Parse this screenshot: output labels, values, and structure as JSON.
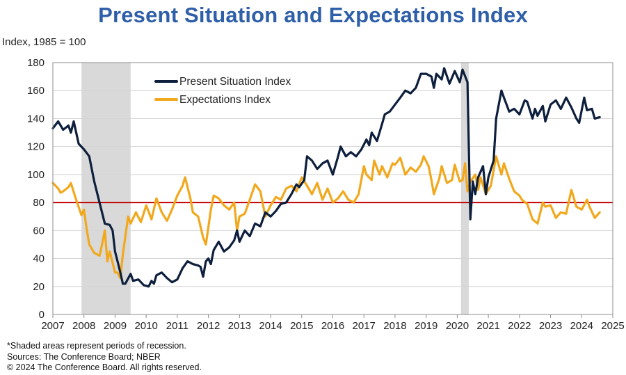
{
  "chart_data": {
    "type": "line",
    "title": "Present Situation and Expectations Index",
    "ylabel": "Index, 1985 = 100",
    "ylim": [
      0,
      180
    ],
    "yticks": [
      0,
      20,
      40,
      60,
      80,
      100,
      120,
      140,
      160,
      180
    ],
    "xlim": [
      2007,
      2025
    ],
    "xticks": [
      2007,
      2008,
      2009,
      2010,
      2011,
      2012,
      2013,
      2014,
      2015,
      2016,
      2017,
      2018,
      2019,
      2020,
      2021,
      2022,
      2023,
      2024,
      2025
    ],
    "grid": true,
    "legend": "top-left inside plot",
    "reference_line": {
      "y": 80,
      "color": "#C00000"
    },
    "recessions": [
      {
        "start": 2007.92,
        "end": 2009.5
      },
      {
        "start": 2020.12,
        "end": 2020.37
      }
    ],
    "series": [
      {
        "name": "Present Situation Index",
        "color": "#0D1F3C",
        "points": [
          [
            2007.0,
            133
          ],
          [
            2007.17,
            138
          ],
          [
            2007.33,
            132
          ],
          [
            2007.5,
            135
          ],
          [
            2007.58,
            130
          ],
          [
            2007.67,
            138
          ],
          [
            2007.83,
            122
          ],
          [
            2008.0,
            118
          ],
          [
            2008.17,
            113
          ],
          [
            2008.33,
            95
          ],
          [
            2008.5,
            80
          ],
          [
            2008.67,
            65
          ],
          [
            2008.83,
            64
          ],
          [
            2008.92,
            60
          ],
          [
            2009.0,
            45
          ],
          [
            2009.08,
            38
          ],
          [
            2009.17,
            30
          ],
          [
            2009.25,
            22
          ],
          [
            2009.33,
            22
          ],
          [
            2009.5,
            29
          ],
          [
            2009.58,
            24
          ],
          [
            2009.75,
            25
          ],
          [
            2009.92,
            21
          ],
          [
            2010.08,
            20
          ],
          [
            2010.17,
            24
          ],
          [
            2010.25,
            22
          ],
          [
            2010.33,
            28
          ],
          [
            2010.5,
            30
          ],
          [
            2010.67,
            26
          ],
          [
            2010.83,
            23
          ],
          [
            2011.0,
            25
          ],
          [
            2011.17,
            33
          ],
          [
            2011.33,
            38
          ],
          [
            2011.5,
            36
          ],
          [
            2011.67,
            35
          ],
          [
            2011.75,
            34
          ],
          [
            2011.83,
            27
          ],
          [
            2011.92,
            38
          ],
          [
            2012.0,
            40
          ],
          [
            2012.08,
            36
          ],
          [
            2012.17,
            46
          ],
          [
            2012.33,
            52
          ],
          [
            2012.5,
            45
          ],
          [
            2012.67,
            48
          ],
          [
            2012.83,
            53
          ],
          [
            2012.92,
            60
          ],
          [
            2013.0,
            52
          ],
          [
            2013.17,
            60
          ],
          [
            2013.33,
            56
          ],
          [
            2013.5,
            65
          ],
          [
            2013.67,
            63
          ],
          [
            2013.83,
            73
          ],
          [
            2014.0,
            70
          ],
          [
            2014.17,
            74
          ],
          [
            2014.33,
            79
          ],
          [
            2014.5,
            80
          ],
          [
            2014.67,
            86
          ],
          [
            2014.83,
            93
          ],
          [
            2014.92,
            91
          ],
          [
            2015.08,
            96
          ],
          [
            2015.17,
            113
          ],
          [
            2015.33,
            110
          ],
          [
            2015.5,
            104
          ],
          [
            2015.67,
            108
          ],
          [
            2015.83,
            110
          ],
          [
            2016.0,
            100
          ],
          [
            2016.17,
            113
          ],
          [
            2016.25,
            120
          ],
          [
            2016.42,
            113
          ],
          [
            2016.58,
            116
          ],
          [
            2016.75,
            113
          ],
          [
            2016.92,
            118
          ],
          [
            2017.08,
            125
          ],
          [
            2017.17,
            121
          ],
          [
            2017.25,
            130
          ],
          [
            2017.42,
            124
          ],
          [
            2017.58,
            136
          ],
          [
            2017.67,
            143
          ],
          [
            2017.83,
            145
          ],
          [
            2018.0,
            150
          ],
          [
            2018.17,
            155
          ],
          [
            2018.33,
            160
          ],
          [
            2018.5,
            158
          ],
          [
            2018.67,
            162
          ],
          [
            2018.83,
            172
          ],
          [
            2019.0,
            172
          ],
          [
            2019.17,
            170
          ],
          [
            2019.25,
            162
          ],
          [
            2019.33,
            172
          ],
          [
            2019.5,
            168
          ],
          [
            2019.58,
            176
          ],
          [
            2019.75,
            165
          ],
          [
            2019.92,
            174
          ],
          [
            2020.08,
            166
          ],
          [
            2020.17,
            175
          ],
          [
            2020.33,
            166
          ],
          [
            2020.42,
            68
          ],
          [
            2020.5,
            95
          ],
          [
            2020.58,
            86
          ],
          [
            2020.67,
            98
          ],
          [
            2020.83,
            106
          ],
          [
            2020.92,
            86
          ],
          [
            2021.0,
            98
          ],
          [
            2021.17,
            110
          ],
          [
            2021.25,
            140
          ],
          [
            2021.42,
            160
          ],
          [
            2021.5,
            155
          ],
          [
            2021.67,
            145
          ],
          [
            2021.83,
            147
          ],
          [
            2022.0,
            143
          ],
          [
            2022.17,
            153
          ],
          [
            2022.25,
            152
          ],
          [
            2022.42,
            140
          ],
          [
            2022.5,
            147
          ],
          [
            2022.58,
            142
          ],
          [
            2022.75,
            149
          ],
          [
            2022.83,
            138
          ],
          [
            2023.0,
            150
          ],
          [
            2023.17,
            153
          ],
          [
            2023.33,
            147
          ],
          [
            2023.5,
            155
          ],
          [
            2023.67,
            148
          ],
          [
            2023.83,
            140
          ],
          [
            2023.92,
            137
          ],
          [
            2024.08,
            155
          ],
          [
            2024.17,
            146
          ],
          [
            2024.33,
            147
          ],
          [
            2024.42,
            140
          ],
          [
            2024.58,
            141
          ]
        ]
      },
      {
        "name": "Expectations Index",
        "color": "#F2A81D",
        "points": [
          [
            2007.0,
            94
          ],
          [
            2007.17,
            90
          ],
          [
            2007.25,
            87
          ],
          [
            2007.33,
            88
          ],
          [
            2007.5,
            91
          ],
          [
            2007.58,
            94
          ],
          [
            2007.75,
            82
          ],
          [
            2007.92,
            71
          ],
          [
            2008.0,
            75
          ],
          [
            2008.08,
            62
          ],
          [
            2008.17,
            50
          ],
          [
            2008.33,
            44
          ],
          [
            2008.5,
            42
          ],
          [
            2008.58,
            50
          ],
          [
            2008.67,
            60
          ],
          [
            2008.75,
            38
          ],
          [
            2008.83,
            45
          ],
          [
            2009.0,
            30
          ],
          [
            2009.08,
            30
          ],
          [
            2009.17,
            26
          ],
          [
            2009.25,
            43
          ],
          [
            2009.42,
            70
          ],
          [
            2009.5,
            65
          ],
          [
            2009.67,
            73
          ],
          [
            2009.83,
            66
          ],
          [
            2010.0,
            78
          ],
          [
            2010.17,
            68
          ],
          [
            2010.33,
            83
          ],
          [
            2010.5,
            73
          ],
          [
            2010.67,
            67
          ],
          [
            2010.83,
            75
          ],
          [
            2011.0,
            85
          ],
          [
            2011.17,
            92
          ],
          [
            2011.25,
            98
          ],
          [
            2011.42,
            83
          ],
          [
            2011.5,
            73
          ],
          [
            2011.67,
            70
          ],
          [
            2011.83,
            55
          ],
          [
            2011.92,
            50
          ],
          [
            2012.08,
            75
          ],
          [
            2012.17,
            85
          ],
          [
            2012.33,
            83
          ],
          [
            2012.5,
            78
          ],
          [
            2012.67,
            75
          ],
          [
            2012.83,
            80
          ],
          [
            2012.92,
            60
          ],
          [
            2013.0,
            70
          ],
          [
            2013.17,
            72
          ],
          [
            2013.33,
            82
          ],
          [
            2013.5,
            93
          ],
          [
            2013.67,
            88
          ],
          [
            2013.83,
            70
          ],
          [
            2014.0,
            78
          ],
          [
            2014.17,
            84
          ],
          [
            2014.33,
            82
          ],
          [
            2014.5,
            90
          ],
          [
            2014.67,
            92
          ],
          [
            2014.83,
            88
          ],
          [
            2015.0,
            98
          ],
          [
            2015.17,
            92
          ],
          [
            2015.33,
            86
          ],
          [
            2015.5,
            94
          ],
          [
            2015.67,
            82
          ],
          [
            2015.83,
            90
          ],
          [
            2016.0,
            80
          ],
          [
            2016.17,
            83
          ],
          [
            2016.33,
            88
          ],
          [
            2016.5,
            82
          ],
          [
            2016.67,
            80
          ],
          [
            2016.83,
            86
          ],
          [
            2017.0,
            106
          ],
          [
            2017.08,
            100
          ],
          [
            2017.25,
            96
          ],
          [
            2017.33,
            110
          ],
          [
            2017.5,
            100
          ],
          [
            2017.58,
            106
          ],
          [
            2017.75,
            98
          ],
          [
            2017.92,
            108
          ],
          [
            2018.0,
            107
          ],
          [
            2018.17,
            112
          ],
          [
            2018.33,
            100
          ],
          [
            2018.5,
            105
          ],
          [
            2018.67,
            102
          ],
          [
            2018.83,
            107
          ],
          [
            2018.92,
            113
          ],
          [
            2019.08,
            106
          ],
          [
            2019.17,
            96
          ],
          [
            2019.25,
            86
          ],
          [
            2019.42,
            97
          ],
          [
            2019.5,
            106
          ],
          [
            2019.67,
            94
          ],
          [
            2019.83,
            96
          ],
          [
            2019.92,
            107
          ],
          [
            2020.08,
            95
          ],
          [
            2020.17,
            96
          ],
          [
            2020.25,
            108
          ],
          [
            2020.33,
            88
          ],
          [
            2020.42,
            95
          ],
          [
            2020.58,
            100
          ],
          [
            2020.67,
            89
          ],
          [
            2020.75,
            98
          ],
          [
            2020.92,
            86
          ],
          [
            2021.0,
            89
          ],
          [
            2021.08,
            92
          ],
          [
            2021.25,
            113
          ],
          [
            2021.42,
            100
          ],
          [
            2021.5,
            108
          ],
          [
            2021.67,
            97
          ],
          [
            2021.83,
            88
          ],
          [
            2022.0,
            85
          ],
          [
            2022.08,
            82
          ],
          [
            2022.25,
            79
          ],
          [
            2022.42,
            68
          ],
          [
            2022.58,
            65
          ],
          [
            2022.75,
            80
          ],
          [
            2022.83,
            77
          ],
          [
            2023.0,
            78
          ],
          [
            2023.17,
            69
          ],
          [
            2023.33,
            73
          ],
          [
            2023.5,
            72
          ],
          [
            2023.67,
            89
          ],
          [
            2023.83,
            77
          ],
          [
            2024.0,
            75
          ],
          [
            2024.17,
            82
          ],
          [
            2024.25,
            77
          ],
          [
            2024.42,
            69
          ],
          [
            2024.58,
            73
          ]
        ]
      }
    ]
  },
  "ytick_labels": [
    "0",
    "20",
    "40",
    "60",
    "80",
    "100",
    "120",
    "140",
    "160",
    "180"
  ],
  "xtick_labels": [
    "2007",
    "2008",
    "2009",
    "2010",
    "2011",
    "2012",
    "2013",
    "2014",
    "2015",
    "2016",
    "2017",
    "2018",
    "2019",
    "2020",
    "2021",
    "2022",
    "2023",
    "2024",
    "2025"
  ],
  "notes": {
    "line1": "*Shaded areas represent periods of recession.",
    "line2": "Sources: The Conference Board;  NBER",
    "line3": "© 2024 The Conference Board. All rights reserved."
  }
}
